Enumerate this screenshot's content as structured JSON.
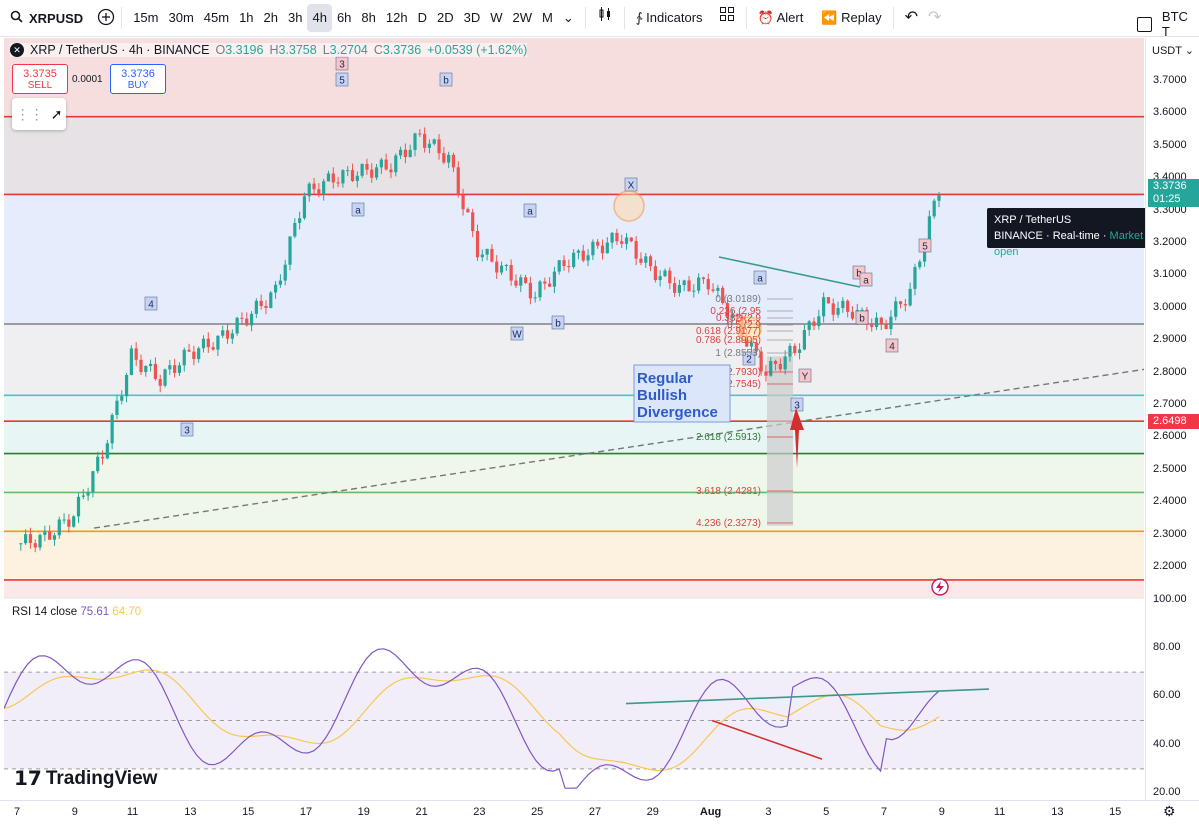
{
  "toolbar": {
    "symbol": "XRPUSD",
    "intervals": [
      "15m",
      "30m",
      "45m",
      "1h",
      "2h",
      "3h",
      "4h",
      "6h",
      "8h",
      "12h",
      "D",
      "2D",
      "3D",
      "W",
      "2W",
      "M"
    ],
    "active_interval": "4h",
    "indicators_label": "Indicators",
    "alert_label": "Alert",
    "replay_label": "Replay",
    "compare_label": "BTC T"
  },
  "legend": {
    "title": "XRP / TetherUS · 4h · BINANCE",
    "o_label": "O",
    "o": "3.3196",
    "h_label": "H",
    "h": "3.3758",
    "l_label": "L",
    "l": "3.2704",
    "c_label": "C",
    "c": "3.3736",
    "change": "+0.0539 (+1.62%)"
  },
  "trade": {
    "sell_price": "3.3735",
    "sell_label": "SELL",
    "spread": "0.0001",
    "buy_price": "3.3736",
    "buy_label": "BUY"
  },
  "tooltip": {
    "name": "XRP / TetherUS",
    "exchange": "BINANCE",
    "feed": "Real-time",
    "status": "Market open"
  },
  "price_scale": {
    "currency": "USDT",
    "current_price": "3.3736",
    "countdown": "01:25",
    "marker_price": "2.6498",
    "ticks": [
      "3.7000",
      "3.6000",
      "3.5000",
      "3.4000",
      "3.3000",
      "3.2000",
      "3.1000",
      "3.0000",
      "2.9000",
      "2.8000",
      "2.7000",
      "2.6000",
      "2.5000",
      "2.4000",
      "2.3000",
      "2.2000"
    ]
  },
  "rsi": {
    "label": "RSI 14 close",
    "value": "75.61",
    "ma_value": "64.70",
    "ticks": [
      "100.00",
      "80.00",
      "60.00",
      "40.00",
      "20.00"
    ]
  },
  "time_axis": {
    "labels": [
      "7",
      "9",
      "11",
      "13",
      "15",
      "17",
      "19",
      "21",
      "23",
      "25",
      "27",
      "29",
      "Aug",
      "3",
      "5",
      "7",
      "9",
      "11",
      "13",
      "15"
    ]
  },
  "annotations": {
    "divergence_text": [
      "Regular",
      "Bullish",
      "Divergence"
    ],
    "fib_labels": [
      "0 (3.0189)",
      "0.236 (2.95",
      "0.382 (2.9",
      "0.5 (2.9",
      "0.618 (2.9177)",
      "0.786 (2.8905)",
      "1 (2.8553)",
      "1.282 (2.7930)",
      "1.618 (2.7545)",
      "2.618 (2.5913)",
      "3.618 (2.4281)",
      "4.236 (2.3273)"
    ],
    "wave_labels": [
      "3",
      "5",
      "b",
      "a",
      "X",
      "a",
      "W",
      "b",
      "4",
      "3",
      "b",
      "a",
      "2",
      "Y",
      "3",
      "a",
      "b",
      "4",
      "5"
    ]
  },
  "branding": {
    "logo_text": "TradingView"
  },
  "colors": {
    "up": "#26a69a",
    "down": "#ef5350",
    "accent": "#2962ff",
    "rsi_line": "#7e57c2",
    "rsi_ma": "#f9c74f"
  },
  "chart_data": {
    "type": "line",
    "title": "XRP / TetherUS · 4h · BINANCE",
    "main": {
      "x": [
        "Jul 7",
        "Jul 8",
        "Jul 9",
        "Jul 10",
        "Jul 11",
        "Jul 12",
        "Jul 13",
        "Jul 14",
        "Jul 15",
        "Jul 16",
        "Jul 17",
        "Jul 18",
        "Jul 19",
        "Jul 20",
        "Jul 21",
        "Jul 22",
        "Jul 23",
        "Jul 24",
        "Jul 25",
        "Jul 26",
        "Jul 27",
        "Jul 28",
        "Jul 29",
        "Jul 30",
        "Jul 31",
        "Aug 1",
        "Aug 2",
        "Aug 3",
        "Aug 4",
        "Aug 5",
        "Aug 6",
        "Aug 7",
        "Aug 8"
      ],
      "close": [
        2.27,
        2.29,
        2.36,
        2.55,
        2.85,
        2.78,
        2.86,
        2.9,
        2.97,
        3.05,
        3.35,
        3.4,
        3.42,
        3.44,
        3.53,
        3.46,
        3.18,
        3.11,
        3.04,
        3.14,
        3.18,
        3.22,
        3.12,
        3.06,
        3.08,
        2.95,
        2.8,
        2.87,
        3.01,
        2.99,
        2.94,
        3.05,
        3.37
      ],
      "ylim": [
        2.12,
        3.83
      ]
    },
    "horizontal_levels": [
      3.59,
      3.35,
      2.95,
      2.73,
      2.65,
      2.55,
      2.43,
      2.31,
      2.16
    ],
    "rsi": {
      "ylim": [
        20,
        100
      ],
      "levels": [
        70,
        50,
        30
      ],
      "current": 75.61,
      "ma": 64.7
    }
  }
}
